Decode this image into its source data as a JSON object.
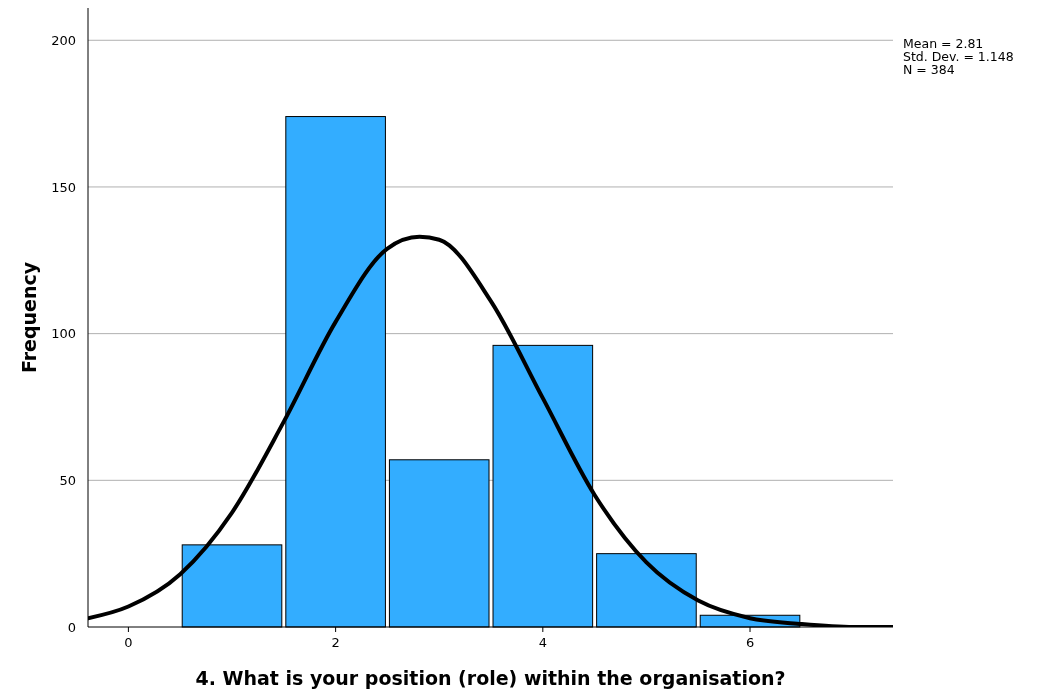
{
  "chart_data": {
    "type": "histogram",
    "xlabel": "4. What is your position (role) within the organisation?",
    "ylabel": "Frequency",
    "bins": [
      0.5,
      1.5,
      2.5,
      3.5,
      4.5,
      5.5,
      6.5
    ],
    "values": [
      28,
      174,
      57,
      96,
      25,
      4
    ],
    "color": "#33adff",
    "series": [
      {
        "type": "line",
        "color": "#000000",
        "x": [
          -0.39,
          0,
          0.5,
          1,
          1.5,
          2,
          2.5,
          2.81,
          3,
          3.5,
          4,
          4.5,
          5,
          5.5,
          6,
          6.5,
          7,
          7.38
        ],
        "values": [
          3,
          7,
          18,
          39,
          70,
          104,
          129,
          133,
          132,
          111,
          78,
          45,
          22,
          9,
          3,
          1,
          0,
          0
        ]
      }
    ],
    "xlim": [
      -0.39,
      7.38
    ],
    "xticks": [
      0,
      2,
      4,
      6
    ],
    "ylim": [
      0,
      211
    ],
    "yticks": [
      0,
      50,
      100,
      150,
      200
    ],
    "grid": "y",
    "annotations": [
      "Mean = 2.81",
      "Std. Dev. = 1.148",
      "N = 384"
    ]
  }
}
